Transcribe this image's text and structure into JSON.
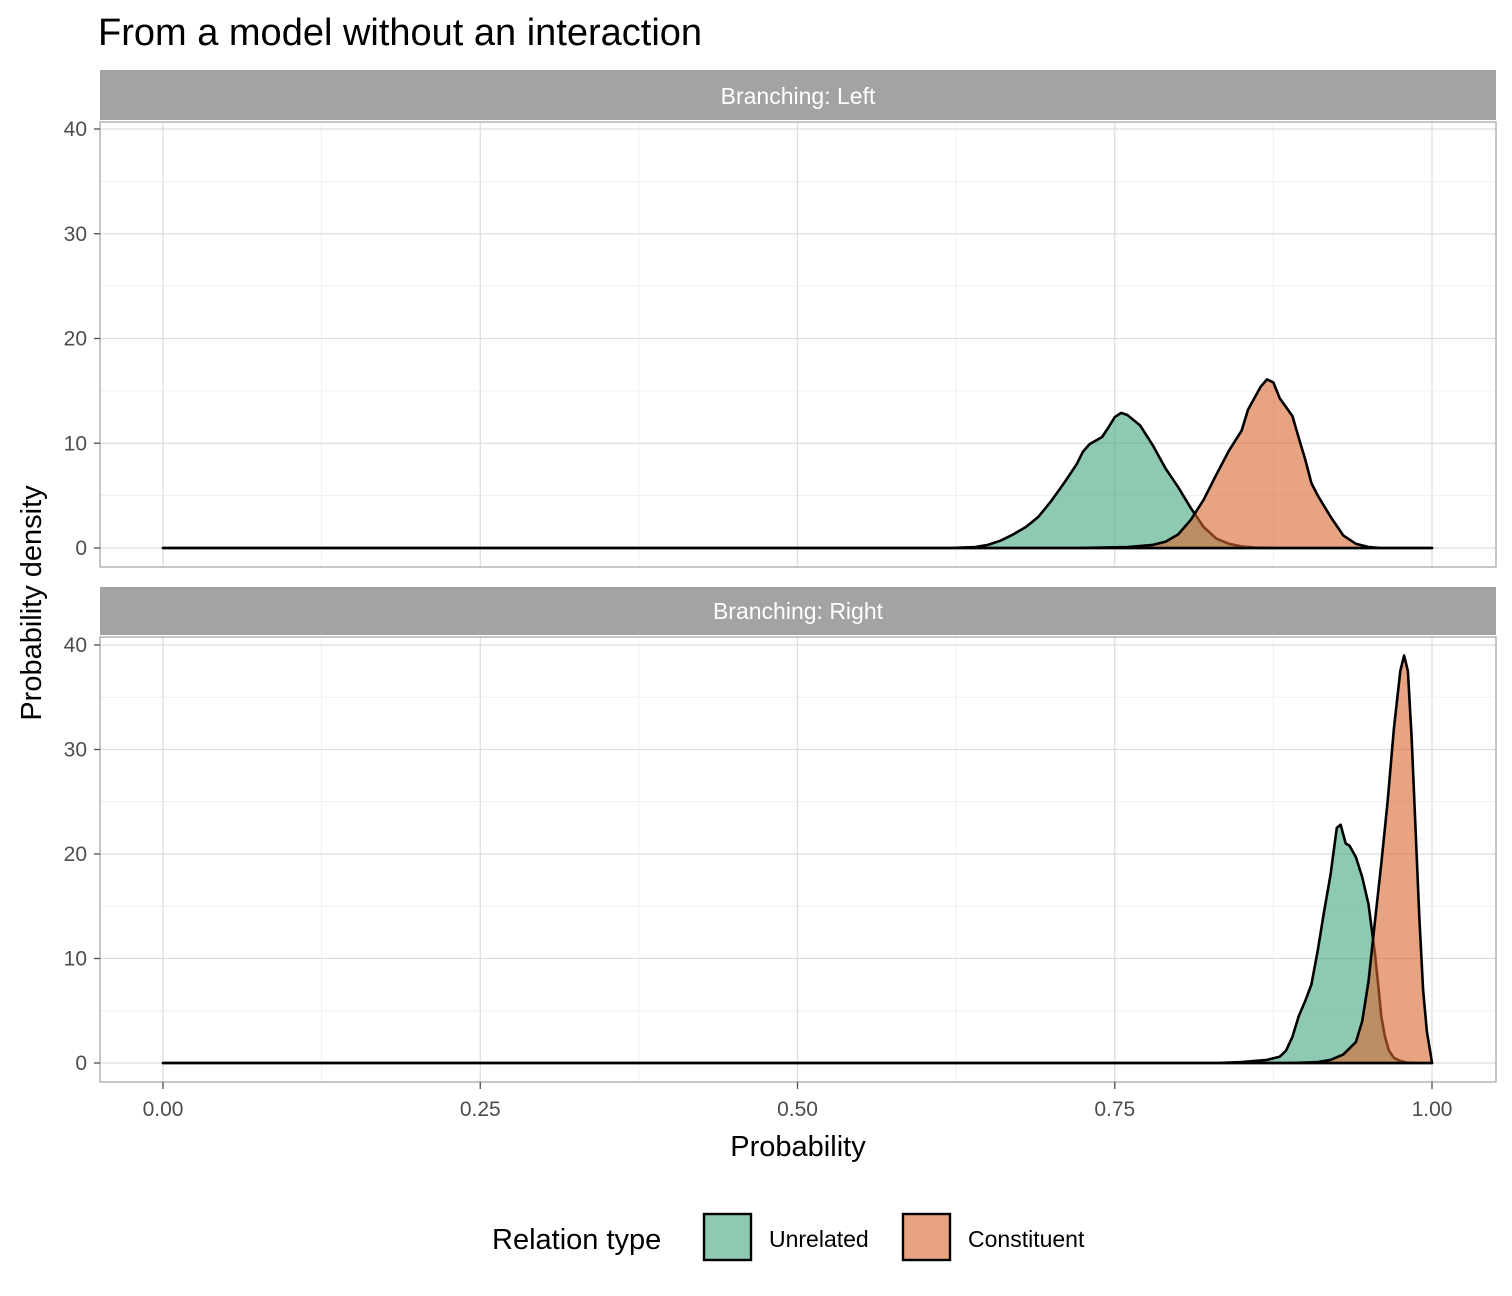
{
  "chart_data": {
    "type": "area",
    "title": "From a model without an interaction",
    "xlabel": "Probability",
    "ylabel": "Probability density",
    "xlim": [
      0,
      1
    ],
    "ylim": [
      0,
      40
    ],
    "x_ticks": [
      "0.00",
      "0.25",
      "0.50",
      "0.75",
      "1.00"
    ],
    "y_ticks": [
      "0",
      "10",
      "20",
      "30",
      "40"
    ],
    "grid": true,
    "legend": {
      "title": "Relation type",
      "position": "bottom",
      "entries": [
        "Unrelated",
        "Constituent"
      ]
    },
    "colors": {
      "Unrelated": "#43a57f",
      "Constituent": "#d9682e"
    },
    "panels": [
      {
        "strip": "Branching: Left",
        "series": [
          {
            "name": "Unrelated",
            "points": [
              [
                0.0,
                0
              ],
              [
                0.62,
                0
              ],
              [
                0.64,
                0.1
              ],
              [
                0.65,
                0.3
              ],
              [
                0.66,
                0.7
              ],
              [
                0.67,
                1.3
              ],
              [
                0.68,
                2.0
              ],
              [
                0.69,
                3.0
              ],
              [
                0.7,
                4.5
              ],
              [
                0.71,
                6.2
              ],
              [
                0.72,
                8.0
              ],
              [
                0.725,
                9.2
              ],
              [
                0.73,
                9.9
              ],
              [
                0.74,
                10.6
              ],
              [
                0.745,
                11.5
              ],
              [
                0.75,
                12.5
              ],
              [
                0.755,
                12.9
              ],
              [
                0.76,
                12.7
              ],
              [
                0.77,
                11.7
              ],
              [
                0.78,
                9.8
              ],
              [
                0.79,
                7.6
              ],
              [
                0.8,
                5.8
              ],
              [
                0.81,
                3.8
              ],
              [
                0.82,
                2.0
              ],
              [
                0.83,
                0.9
              ],
              [
                0.84,
                0.4
              ],
              [
                0.85,
                0.15
              ],
              [
                0.86,
                0.05
              ],
              [
                0.88,
                0
              ],
              [
                1.0,
                0
              ]
            ]
          },
          {
            "name": "Constituent",
            "points": [
              [
                0.0,
                0
              ],
              [
                0.72,
                0
              ],
              [
                0.74,
                0.05
              ],
              [
                0.76,
                0.1
              ],
              [
                0.78,
                0.3
              ],
              [
                0.79,
                0.6
              ],
              [
                0.8,
                1.3
              ],
              [
                0.81,
                2.7
              ],
              [
                0.82,
                4.6
              ],
              [
                0.83,
                7.0
              ],
              [
                0.84,
                9.3
              ],
              [
                0.85,
                11.2
              ],
              [
                0.855,
                13.2
              ],
              [
                0.86,
                14.3
              ],
              [
                0.865,
                15.4
              ],
              [
                0.87,
                16.1
              ],
              [
                0.875,
                15.8
              ],
              [
                0.88,
                14.3
              ],
              [
                0.89,
                12.6
              ],
              [
                0.895,
                10.5
              ],
              [
                0.9,
                8.5
              ],
              [
                0.905,
                6.2
              ],
              [
                0.91,
                5.0
              ],
              [
                0.92,
                3.0
              ],
              [
                0.93,
                1.2
              ],
              [
                0.94,
                0.4
              ],
              [
                0.95,
                0.1
              ],
              [
                0.96,
                0
              ],
              [
                1.0,
                0
              ]
            ]
          }
        ]
      },
      {
        "strip": "Branching: Right",
        "series": [
          {
            "name": "Unrelated",
            "points": [
              [
                0.0,
                0
              ],
              [
                0.83,
                0
              ],
              [
                0.85,
                0.1
              ],
              [
                0.87,
                0.3
              ],
              [
                0.88,
                0.6
              ],
              [
                0.885,
                1.2
              ],
              [
                0.89,
                2.5
              ],
              [
                0.895,
                4.5
              ],
              [
                0.9,
                5.9
              ],
              [
                0.905,
                7.5
              ],
              [
                0.91,
                10.8
              ],
              [
                0.915,
                14.5
              ],
              [
                0.92,
                18.0
              ],
              [
                0.925,
                22.5
              ],
              [
                0.928,
                22.8
              ],
              [
                0.932,
                21.0
              ],
              [
                0.935,
                20.8
              ],
              [
                0.94,
                19.7
              ],
              [
                0.945,
                17.8
              ],
              [
                0.95,
                15.2
              ],
              [
                0.955,
                10.5
              ],
              [
                0.958,
                7.0
              ],
              [
                0.96,
                4.5
              ],
              [
                0.963,
                2.5
              ],
              [
                0.966,
                1.2
              ],
              [
                0.97,
                0.5
              ],
              [
                0.975,
                0.2
              ],
              [
                0.98,
                0.05
              ],
              [
                0.99,
                0
              ],
              [
                1.0,
                0
              ]
            ]
          },
          {
            "name": "Constituent",
            "points": [
              [
                0.0,
                0
              ],
              [
                0.89,
                0
              ],
              [
                0.91,
                0.1
              ],
              [
                0.92,
                0.3
              ],
              [
                0.93,
                0.8
              ],
              [
                0.94,
                2.0
              ],
              [
                0.945,
                4.0
              ],
              [
                0.95,
                7.8
              ],
              [
                0.955,
                13.5
              ],
              [
                0.96,
                19.0
              ],
              [
                0.965,
                25.0
              ],
              [
                0.97,
                32.0
              ],
              [
                0.975,
                37.5
              ],
              [
                0.978,
                39.0
              ],
              [
                0.981,
                37.5
              ],
              [
                0.984,
                31.0
              ],
              [
                0.987,
                22.5
              ],
              [
                0.99,
                14.0
              ],
              [
                0.993,
                7.0
              ],
              [
                0.996,
                3.0
              ],
              [
                0.999,
                0.8
              ],
              [
                1.0,
                0
              ]
            ]
          }
        ]
      }
    ]
  }
}
